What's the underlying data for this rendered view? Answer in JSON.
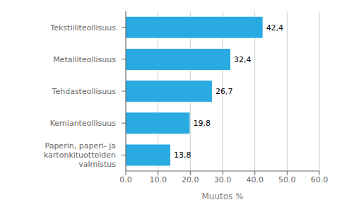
{
  "chart_data": {
    "type": "bar",
    "orientation": "horizontal",
    "categories": [
      "Paperin, paperi- ja kartonkituotteiden valmistus",
      "Kemianteollisuus",
      "Tehdasteollisuus",
      "Metalliteollisuus",
      "Tekstiiliteollisuus"
    ],
    "values": [
      13.8,
      19.8,
      26.7,
      32.4,
      42.4
    ],
    "value_labels": [
      "13,8",
      "19,8",
      "26,7",
      "32,4",
      "42,4"
    ],
    "data_labels": true,
    "color": "#29ABE2",
    "xlabel": "Muutos %",
    "xlim": [
      0,
      60
    ],
    "xticks": [
      {
        "value": 0.0,
        "label": "0.0"
      },
      {
        "value": 10.0,
        "label": "10.0"
      },
      {
        "value": 20.0,
        "label": "20.0"
      },
      {
        "value": 30.0,
        "label": "30.0"
      },
      {
        "value": 40.0,
        "label": "40.0"
      },
      {
        "value": 50.0,
        "label": "50.0"
      },
      {
        "value": 60.0,
        "label": "60.0"
      }
    ],
    "grid": true
  }
}
